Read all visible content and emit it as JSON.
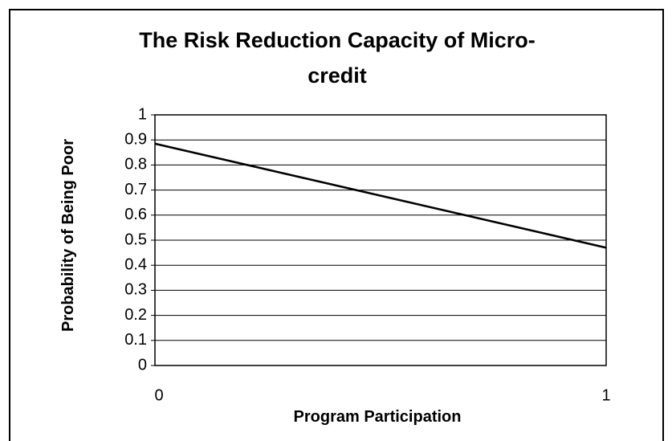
{
  "chart_data": {
    "type": "line",
    "title": "The Risk Reduction Capacity of Micro-credit",
    "x_label": "Program Participation",
    "y_label": "Probability of Being Poor",
    "x": [
      0,
      1
    ],
    "series": [
      {
        "name": "Probability of Being Poor",
        "color": "#000000",
        "values": [
          0.885,
          0.47
        ]
      }
    ],
    "xlim": [
      0,
      1
    ],
    "xticks": [
      0,
      1
    ],
    "ylim": [
      0,
      1
    ],
    "yticks": [
      0,
      0.1,
      0.2,
      0.3,
      0.4,
      0.5,
      0.6,
      0.7,
      0.8,
      0.9,
      1
    ],
    "grid": true
  }
}
